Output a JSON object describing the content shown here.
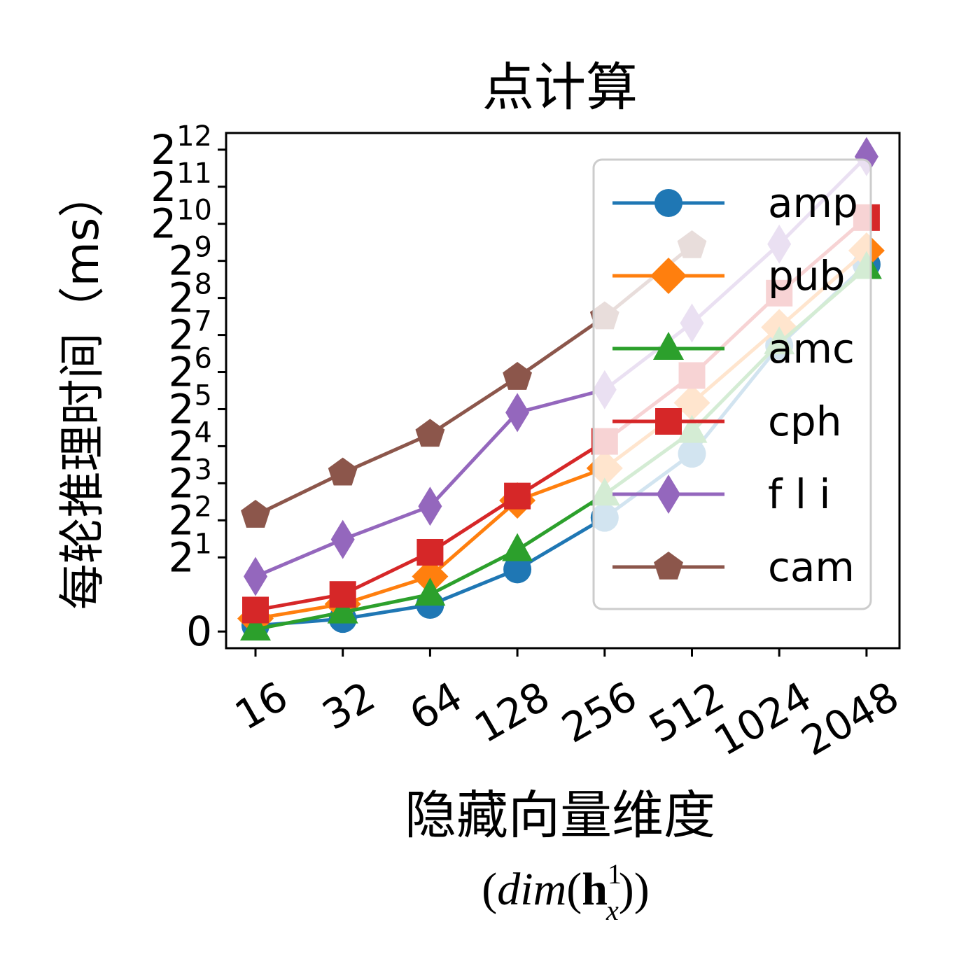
{
  "chart_data": {
    "type": "line",
    "title": "点计算",
    "xlabel": "隐藏向量维度",
    "xlabel_math": {
      "open": "(",
      "func": "dim",
      "inner_open": "(",
      "bold": "h",
      "superscript": "1",
      "subscript": "x",
      "close": "))"
    },
    "ylabel": "每轮推理时间（ms）",
    "categories": [
      "16",
      "32",
      "64",
      "128",
      "256",
      "512",
      "1024",
      "2048"
    ],
    "y_scale": "symlog base 2",
    "y_ticks": [
      {
        "value": 0,
        "base": "0",
        "exp": ""
      },
      {
        "value": 1,
        "base": "2",
        "exp": "1"
      },
      {
        "value": 2,
        "base": "2",
        "exp": "2"
      },
      {
        "value": 3,
        "base": "2",
        "exp": "3"
      },
      {
        "value": 4,
        "base": "2",
        "exp": "4"
      },
      {
        "value": 5,
        "base": "2",
        "exp": "5"
      },
      {
        "value": 6,
        "base": "2",
        "exp": "6"
      },
      {
        "value": 7,
        "base": "2",
        "exp": "7"
      },
      {
        "value": 8,
        "base": "2",
        "exp": "8"
      },
      {
        "value": 9,
        "base": "2",
        "exp": "9"
      },
      {
        "value": 10,
        "base": "2",
        "exp": "10"
      },
      {
        "value": 11,
        "base": "2",
        "exp": "11"
      },
      {
        "value": 12,
        "base": "2",
        "exp": "12"
      }
    ],
    "ylim_log2": [
      -0.45,
      13.45
    ],
    "legend_position": "upper right",
    "series": [
      {
        "name": "amp",
        "color": "#1f77b4",
        "marker": "circle",
        "values": [
          0.16,
          0.34,
          0.72,
          1.6,
          4.2,
          13.9,
          105,
          480
        ]
      },
      {
        "name": "pub",
        "color": "#ff7f0e",
        "marker": "diamond",
        "values": [
          0.35,
          0.74,
          1.4,
          5.8,
          10.6,
          36,
          148,
          620
        ]
      },
      {
        "name": "amc",
        "color": "#2ca02c",
        "marker": "triangle",
        "values": [
          0.06,
          0.52,
          1.0,
          2.3,
          6.5,
          21,
          110,
          450
        ]
      },
      {
        "name": "cph",
        "color": "#d62728",
        "marker": "square",
        "values": [
          0.58,
          1.0,
          2.2,
          6.3,
          17.5,
          60,
          280,
          1150
        ]
      },
      {
        "name": "f l i",
        "color": "#9467bd",
        "marker": "thin_diamond",
        "values": [
          1.4,
          2.8,
          5.2,
          30,
          46,
          160,
          700,
          3600
        ]
      },
      {
        "name": "cam",
        "color": "#8c564b",
        "marker": "pentagon",
        "values": [
          4.4,
          9.7,
          20,
          58,
          180,
          680,
          null,
          null
        ]
      }
    ]
  }
}
